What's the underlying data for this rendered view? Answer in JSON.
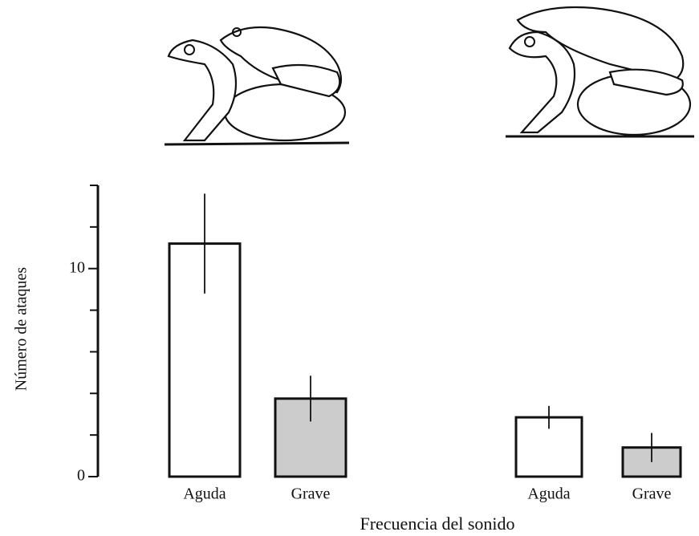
{
  "chart_data": {
    "type": "bar",
    "categories": [
      "Aguda",
      "Grave",
      "Aguda",
      "Grave"
    ],
    "values": [
      11.2,
      3.75,
      2.85,
      1.4
    ],
    "errors": [
      2.4,
      1.1,
      0.55,
      0.7
    ],
    "colors": [
      "#ffffff",
      "#cccccc",
      "#ffffff",
      "#cccccc"
    ],
    "x_label": "Frecuencia del sonido",
    "y_label": "Número de ataques",
    "ylim": [
      0,
      14
    ],
    "yticks": [
      0,
      10
    ],
    "minor_yticks": [
      2,
      4,
      6,
      8,
      12,
      14
    ],
    "grid": false
  }
}
